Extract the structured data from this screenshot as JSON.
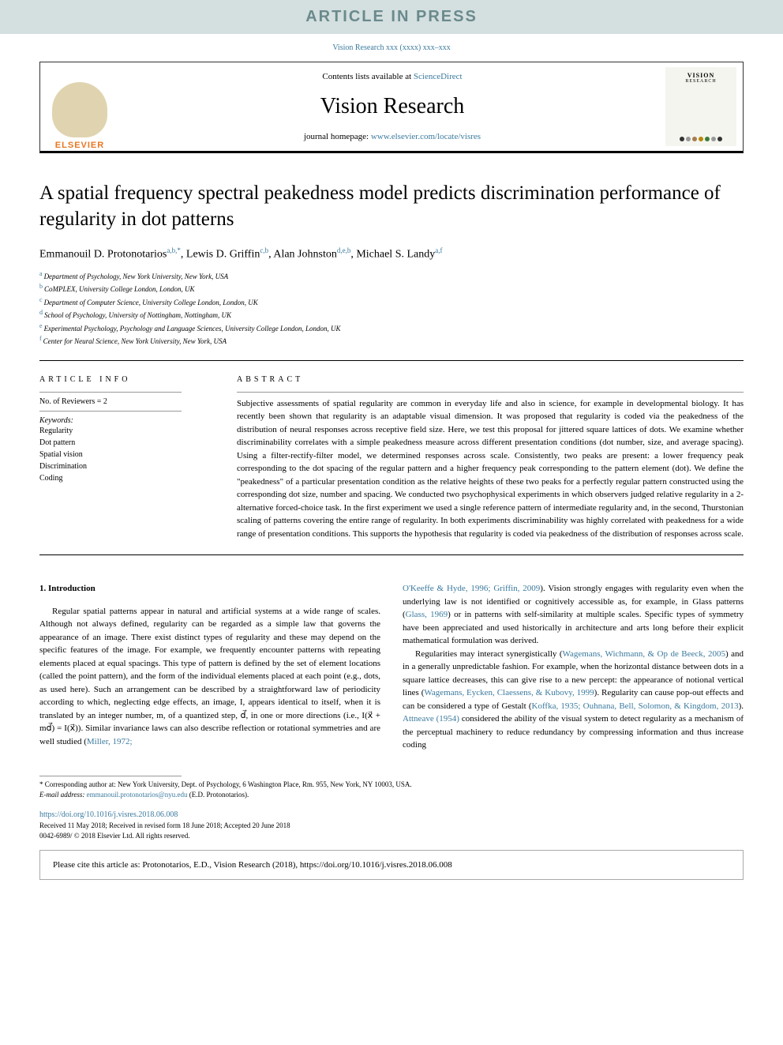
{
  "banner": {
    "text": "ARTICLE IN PRESS"
  },
  "citation_line": "Vision Research xxx (xxxx) xxx–xxx",
  "header": {
    "contents_prefix": "Contents lists available at ",
    "contents_link": "ScienceDirect",
    "journal_name": "Vision Research",
    "homepage_prefix": "journal homepage: ",
    "homepage_link": "www.elsevier.com/locate/visres",
    "elsevier_text": "ELSEVIER",
    "cover_title": "VISION",
    "cover_subtitle": "RESEARCH",
    "cover_dot_colors": [
      "#333333",
      "#999999",
      "#a87c4f",
      "#b8860b",
      "#3a7b3a",
      "#999999",
      "#333333"
    ]
  },
  "article": {
    "title": "A spatial frequency spectral peakedness model predicts discrimination performance of regularity in dot patterns",
    "authors": [
      {
        "name": "Emmanouil D. Protonotarios",
        "sups": "a,b,*"
      },
      {
        "name": "Lewis D. Griffin",
        "sups": "c,b"
      },
      {
        "name": "Alan Johnston",
        "sups": "d,e,b"
      },
      {
        "name": "Michael S. Landy",
        "sups": "a,f"
      }
    ],
    "affiliations": [
      {
        "sup": "a",
        "text": "Department of Psychology, New York University, New York, USA"
      },
      {
        "sup": "b",
        "text": "CoMPLEX, University College London, London, UK"
      },
      {
        "sup": "c",
        "text": "Department of Computer Science, University College London, London, UK"
      },
      {
        "sup": "d",
        "text": "School of Psychology, University of Nottingham, Nottingham, UK"
      },
      {
        "sup": "e",
        "text": "Experimental Psychology, Psychology and Language Sciences, University College London, London, UK"
      },
      {
        "sup": "f",
        "text": "Center for Neural Science, New York University, New York, USA"
      }
    ]
  },
  "article_info": {
    "heading": "ARTICLE INFO",
    "reviewers": "No. of Reviewers = 2",
    "keywords_label": "Keywords:",
    "keywords": [
      "Regularity",
      "Dot pattern",
      "Spatial vision",
      "Discrimination",
      "Coding"
    ]
  },
  "abstract": {
    "heading": "ABSTRACT",
    "text": "Subjective assessments of spatial regularity are common in everyday life and also in science, for example in developmental biology. It has recently been shown that regularity is an adaptable visual dimension. It was proposed that regularity is coded via the peakedness of the distribution of neural responses across receptive field size. Here, we test this proposal for jittered square lattices of dots. We examine whether discriminability correlates with a simple peakedness measure across different presentation conditions (dot number, size, and average spacing). Using a filter-rectify-filter model, we determined responses across scale. Consistently, two peaks are present: a lower frequency peak corresponding to the dot spacing of the regular pattern and a higher frequency peak corresponding to the pattern element (dot). We define the \"peakedness\" of a particular presentation condition as the relative heights of these two peaks for a perfectly regular pattern constructed using the corresponding dot size, number and spacing. We conducted two psychophysical experiments in which observers judged relative regularity in a 2-alternative forced-choice task. In the first experiment we used a single reference pattern of intermediate regularity and, in the second, Thurstonian scaling of patterns covering the entire range of regularity. In both experiments discriminability was highly correlated with peakedness for a wide range of presentation conditions. This supports the hypothesis that regularity is coded via peakedness of the distribution of responses across scale."
  },
  "body": {
    "section_title": "1. Introduction",
    "col1_para1_a": "Regular spatial patterns appear in natural and artificial systems at a wide range of scales. Although not always defined, regularity can be regarded as a simple law that governs the appearance of an image. There exist distinct types of regularity and these may depend on the specific features of the image. For example, we frequently encounter patterns with repeating elements placed at equal spacings. This type of pattern is defined by the set of element locations (called the point pattern), and the form of the individual elements placed at each point (e.g., dots, as used here). Such an arrangement can be described by a straightforward law of periodicity according to which, neglecting edge effects, an image, I, appears identical to itself, when it is translated by an integer number, m, of a quantized step, d⃗, in one or more directions (i.e., I(x⃗ + md⃗) = I(x⃗)). Similar invariance laws can also describe reflection or rotational symmetries and are well studied (",
    "col1_ref1": "Miller, 1972;",
    "col2_ref1": "O'Keeffe & Hyde, 1996; Griffin, 2009",
    "col2_para1_a": "). Vision strongly engages with regularity even when the underlying law is not identified or cognitively accessible as, for example, in Glass patterns (",
    "col2_ref2": "Glass, 1969",
    "col2_para1_b": ") or in patterns with self-similarity at multiple scales. Specific types of symmetry have been appreciated and used historically in architecture and arts long before their explicit mathematical formulation was derived.",
    "col2_para2_a": "Regularities may interact synergistically (",
    "col2_ref3": "Wagemans, Wichmann, & Op de Beeck, 2005",
    "col2_para2_b": ") and in a generally unpredictable fashion. For example, when the horizontal distance between dots in a square lattice decreases, this can give rise to a new percept: the appearance of notional vertical lines (",
    "col2_ref4": "Wagemans, Eycken, Claessens, & Kubovy, 1999",
    "col2_para2_c": "). Regularity can cause pop-out effects and can be considered a type of Gestalt (",
    "col2_ref5": "Koffka, 1935; Ouhnana, Bell, Solomon, & Kingdom, 2013",
    "col2_para2_d": "). ",
    "col2_ref6": "Attneave (1954)",
    "col2_para2_e": " considered the ability of the visual system to detect regularity as a mechanism of the perceptual machinery to reduce redundancy by compressing information and thus increase coding"
  },
  "footer": {
    "corresponding": "* Corresponding author at: New York University, Dept. of Psychology, 6 Washington Place, Rm. 955, New York, NY 10003, USA.",
    "email_label": "E-mail address: ",
    "email": "emmanouil.protonotarios@nyu.edu",
    "email_suffix": " (E.D. Protonotarios).",
    "doi": "https://doi.org/10.1016/j.visres.2018.06.008",
    "received": "Received 11 May 2018; Received in revised form 18 June 2018; Accepted 20 June 2018",
    "copyright": "0042-6989/ © 2018 Elsevier Ltd. All rights reserved."
  },
  "cite_box": "Please cite this article as: Protonotarios, E.D., Vision Research (2018), https://doi.org/10.1016/j.visres.2018.06.008"
}
